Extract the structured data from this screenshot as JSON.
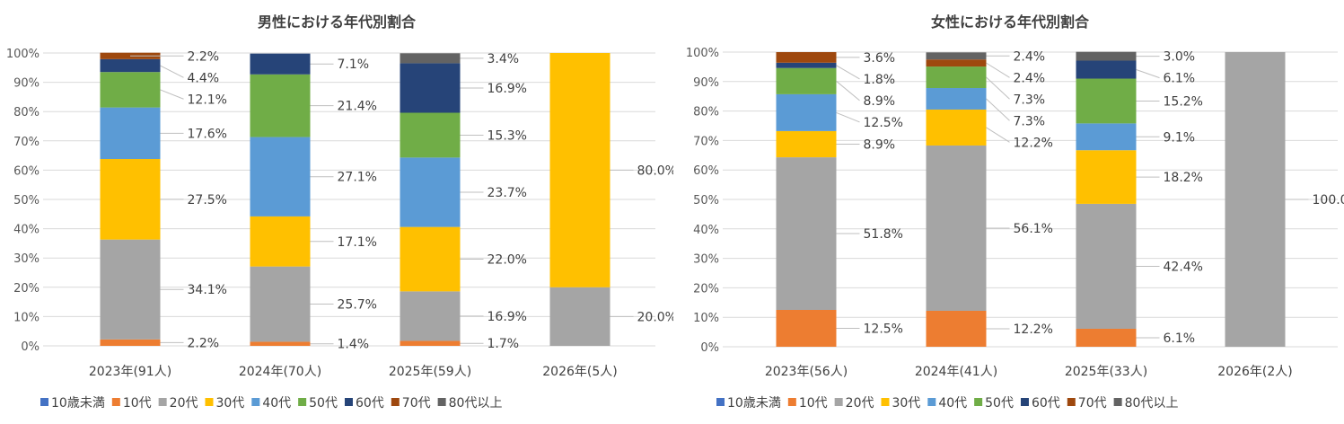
{
  "colors": {
    "10歳未満": "#4472C4",
    "10代": "#ED7D31",
    "20代": "#A5A5A5",
    "30代": "#FFC000",
    "40代": "#5B9BD5",
    "50代": "#70AD47",
    "60代": "#264478",
    "70代": "#9E480E",
    "80代以上": "#636363"
  },
  "chart_data": [
    {
      "type": "bar",
      "stacked": "percent",
      "title": "男性における年代別割合",
      "categories": [
        "2023年(91人)",
        "2024年(70人)",
        "2025年(59人)",
        "2026年(5人)"
      ],
      "yticks": [
        "0%",
        "10%",
        "20%",
        "30%",
        "40%",
        "50%",
        "60%",
        "70%",
        "80%",
        "90%",
        "100%"
      ],
      "ylim": [
        0,
        100
      ],
      "grid": true,
      "legend": "bottom",
      "series": [
        {
          "name": "10歳未満",
          "values": [
            0,
            0,
            0,
            0
          ]
        },
        {
          "name": "10代",
          "values": [
            2.2,
            1.4,
            1.7,
            0
          ]
        },
        {
          "name": "20代",
          "values": [
            34.1,
            25.7,
            16.9,
            20.0
          ]
        },
        {
          "name": "30代",
          "values": [
            27.5,
            17.1,
            22.0,
            80.0
          ]
        },
        {
          "name": "40代",
          "values": [
            17.6,
            27.1,
            23.7,
            0
          ]
        },
        {
          "name": "50代",
          "values": [
            12.1,
            21.4,
            15.3,
            0
          ]
        },
        {
          "name": "60代",
          "values": [
            4.4,
            7.1,
            16.9,
            0
          ]
        },
        {
          "name": "70代",
          "values": [
            2.2,
            0,
            0,
            0
          ]
        },
        {
          "name": "80代以上",
          "values": [
            0,
            0,
            3.4,
            0
          ]
        }
      ]
    },
    {
      "type": "bar",
      "stacked": "percent",
      "title": "女性における年代別割合",
      "categories": [
        "2023年(56人)",
        "2024年(41人)",
        "2025年(33人)",
        "2026年(2人)"
      ],
      "yticks": [
        "0%",
        "10%",
        "20%",
        "30%",
        "40%",
        "50%",
        "60%",
        "70%",
        "80%",
        "90%",
        "100%"
      ],
      "ylim": [
        0,
        100
      ],
      "grid": true,
      "legend": "bottom",
      "series": [
        {
          "name": "10歳未満",
          "values": [
            0,
            0,
            0,
            0
          ]
        },
        {
          "name": "10代",
          "values": [
            12.5,
            12.2,
            6.1,
            0
          ]
        },
        {
          "name": "20代",
          "values": [
            51.8,
            56.1,
            42.4,
            100.0
          ]
        },
        {
          "name": "30代",
          "values": [
            8.9,
            12.2,
            18.2,
            0
          ]
        },
        {
          "name": "40代",
          "values": [
            12.5,
            7.3,
            9.1,
            0
          ]
        },
        {
          "name": "50代",
          "values": [
            8.9,
            7.3,
            15.2,
            0
          ]
        },
        {
          "name": "60代",
          "values": [
            1.8,
            0,
            6.1,
            0
          ]
        },
        {
          "name": "70代",
          "values": [
            3.6,
            2.4,
            0,
            0
          ]
        },
        {
          "name": "80代以上",
          "values": [
            0,
            2.4,
            3.0,
            0
          ]
        }
      ]
    }
  ]
}
